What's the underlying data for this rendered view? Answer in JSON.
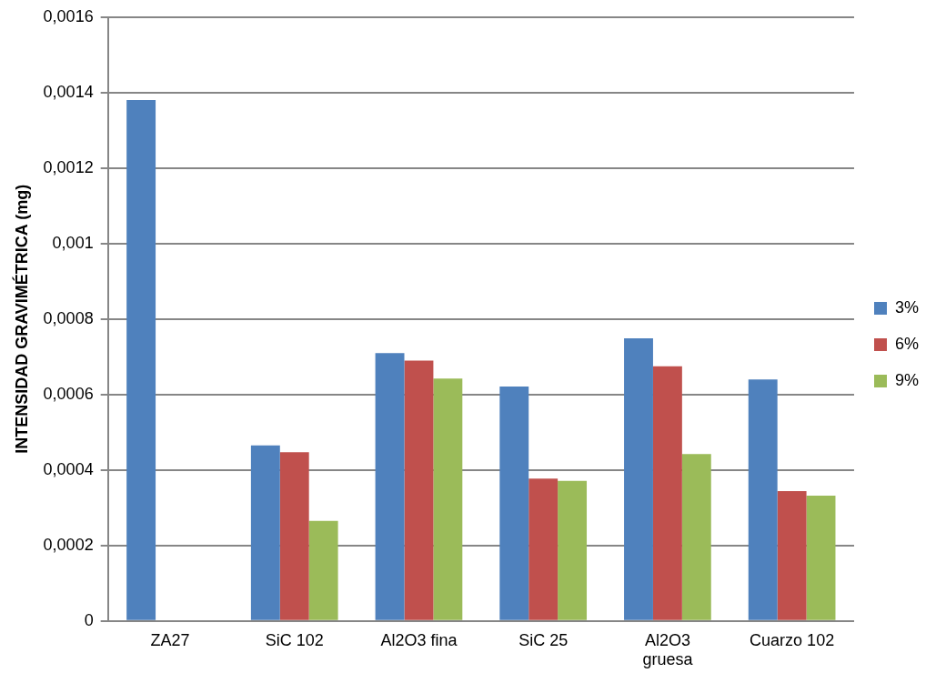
{
  "chart_data": {
    "type": "bar",
    "ylabel": "INTENSIDAD GRAVIMÉTRICA (mg)",
    "categories": [
      "ZA27",
      "SiC 102",
      "Al2O3 fina",
      "SiC 25",
      "Al2O3 gruesa",
      "Cuarzo 102"
    ],
    "series": [
      {
        "name": "3%",
        "color": "#4f81bd",
        "values": [
          0.00138,
          0.000465,
          0.00071,
          0.000621,
          0.000749,
          0.00064
        ]
      },
      {
        "name": "6%",
        "color": "#c0504d",
        "values": [
          null,
          0.000447,
          0.00069,
          0.000377,
          0.000675,
          0.000344
        ]
      },
      {
        "name": "9%",
        "color": "#9bbb59",
        "values": [
          null,
          0.000265,
          0.000642,
          0.000371,
          0.000442,
          0.000332
        ]
      }
    ],
    "ylim": [
      0,
      0.0016
    ],
    "yticks": [
      0,
      {
        "value": 0.0002,
        "label": "0,0002"
      },
      {
        "value": 0.0004,
        "label": "0,0004"
      },
      {
        "value": 0.0006,
        "label": "0,0006"
      },
      {
        "value": 0.0008,
        "label": "0,0008"
      },
      {
        "value": 0.001,
        "label": "0,001"
      },
      {
        "value": 0.0012,
        "label": "0,0012"
      },
      {
        "value": 0.0014,
        "label": "0,0014"
      },
      {
        "value": 0.0016,
        "label": "0,0016"
      }
    ],
    "grid": "y",
    "legend": "right"
  }
}
